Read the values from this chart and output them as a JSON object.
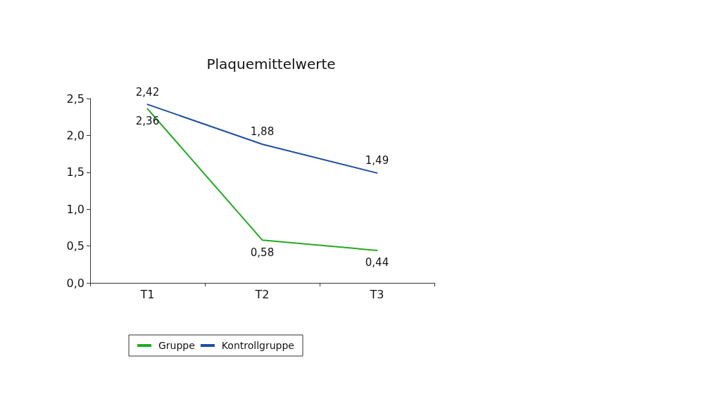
{
  "chart_data": {
    "type": "line",
    "title": "Plaquemittelwerte",
    "categories": [
      "T1",
      "T2",
      "T3"
    ],
    "series": [
      {
        "name": "Gruppe",
        "color": "#22aa22",
        "values": [
          2.36,
          0.58,
          0.44
        ],
        "value_labels": [
          "2,36",
          "0,58",
          "0,44"
        ]
      },
      {
        "name": "Kontrollgruppe",
        "color": "#1f4fa0",
        "values": [
          2.42,
          1.88,
          1.49
        ],
        "value_labels": [
          "2,42",
          "1,88",
          "1,49"
        ]
      }
    ],
    "ylim": [
      0,
      2.5
    ],
    "yticks": [
      {
        "value": 0,
        "label": "0,0"
      },
      {
        "value": 0.5,
        "label": "0,5"
      },
      {
        "value": 1,
        "label": "1,0"
      },
      {
        "value": 1.5,
        "label": "1,5"
      },
      {
        "value": 2,
        "label": "2,0"
      },
      {
        "value": 2.5,
        "label": "2,5"
      }
    ],
    "grid": false,
    "legend": "bottom",
    "line_style": "solid"
  }
}
